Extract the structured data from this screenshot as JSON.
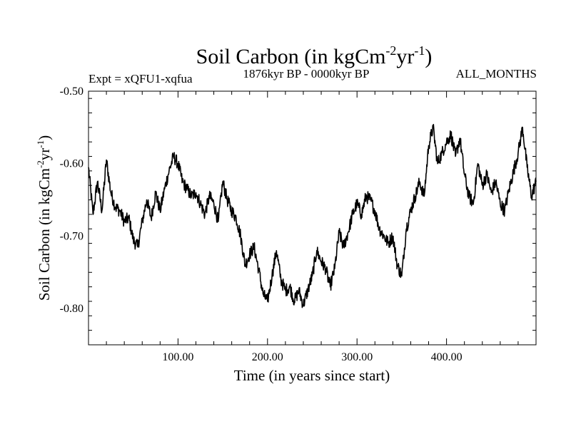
{
  "chart_data": {
    "type": "line",
    "title": "Soil Carbon (in kgCm",
    "title_sup1": "-2",
    "title_mid": "yr",
    "title_sup2": "-1",
    "title_end": ")",
    "subtitle_left": "Expt = xQFU1-xqfua",
    "subtitle_center": "1876kyr BP - 0000kyr BP",
    "subtitle_right": "ALL_MONTHS",
    "xlabel": "Time (in years since start)",
    "ylabel": "Soil Carbon (in kgCm",
    "ylabel_sup1": "-2",
    "ylabel_mid": "yr",
    "ylabel_sup2": "-1",
    "ylabel_end": ")",
    "xlim": [
      0,
      500
    ],
    "ylim": [
      -0.85,
      -0.5
    ],
    "x_ticks": [
      100,
      200,
      300,
      400
    ],
    "x_tick_labels": [
      "100.00",
      "200.00",
      "300.00",
      "400.00"
    ],
    "y_ticks": [
      -0.5,
      -0.6,
      -0.7,
      -0.8
    ],
    "y_tick_labels": [
      "-0.50",
      "-0.60",
      "-0.70",
      "-0.80"
    ],
    "line_color": "#000000",
    "series": [
      {
        "name": "Soil Carbon",
        "x": [
          0,
          5,
          10,
          15,
          20,
          25,
          30,
          35,
          40,
          45,
          50,
          55,
          60,
          65,
          70,
          75,
          80,
          85,
          90,
          95,
          100,
          105,
          110,
          115,
          120,
          125,
          130,
          135,
          140,
          145,
          150,
          155,
          160,
          165,
          170,
          175,
          180,
          185,
          190,
          195,
          200,
          205,
          210,
          215,
          220,
          225,
          230,
          235,
          240,
          245,
          250,
          255,
          260,
          265,
          270,
          275,
          280,
          285,
          290,
          295,
          300,
          305,
          310,
          315,
          320,
          325,
          330,
          335,
          340,
          345,
          350,
          355,
          360,
          365,
          370,
          375,
          380,
          385,
          390,
          395,
          400,
          405,
          410,
          415,
          420,
          425,
          430,
          435,
          440,
          445,
          450,
          455,
          460,
          465,
          470,
          475,
          480,
          485,
          490,
          495,
          500
        ],
        "values": [
          -0.605,
          -0.67,
          -0.625,
          -0.665,
          -0.595,
          -0.64,
          -0.66,
          -0.665,
          -0.68,
          -0.675,
          -0.705,
          -0.715,
          -0.68,
          -0.65,
          -0.675,
          -0.64,
          -0.665,
          -0.635,
          -0.61,
          -0.59,
          -0.6,
          -0.625,
          -0.635,
          -0.645,
          -0.64,
          -0.655,
          -0.67,
          -0.645,
          -0.655,
          -0.68,
          -0.625,
          -0.65,
          -0.665,
          -0.675,
          -0.7,
          -0.74,
          -0.725,
          -0.715,
          -0.745,
          -0.78,
          -0.79,
          -0.755,
          -0.72,
          -0.76,
          -0.775,
          -0.77,
          -0.79,
          -0.775,
          -0.795,
          -0.775,
          -0.755,
          -0.72,
          -0.735,
          -0.745,
          -0.77,
          -0.745,
          -0.695,
          -0.715,
          -0.695,
          -0.67,
          -0.655,
          -0.67,
          -0.645,
          -0.65,
          -0.665,
          -0.69,
          -0.7,
          -0.71,
          -0.7,
          -0.74,
          -0.755,
          -0.69,
          -0.665,
          -0.645,
          -0.625,
          -0.645,
          -0.575,
          -0.55,
          -0.6,
          -0.585,
          -0.57,
          -0.56,
          -0.59,
          -0.565,
          -0.615,
          -0.645,
          -0.655,
          -0.6,
          -0.63,
          -0.615,
          -0.64,
          -0.625,
          -0.655,
          -0.665,
          -0.635,
          -0.61,
          -0.585,
          -0.55,
          -0.605,
          -0.645,
          -0.625
        ]
      }
    ]
  }
}
